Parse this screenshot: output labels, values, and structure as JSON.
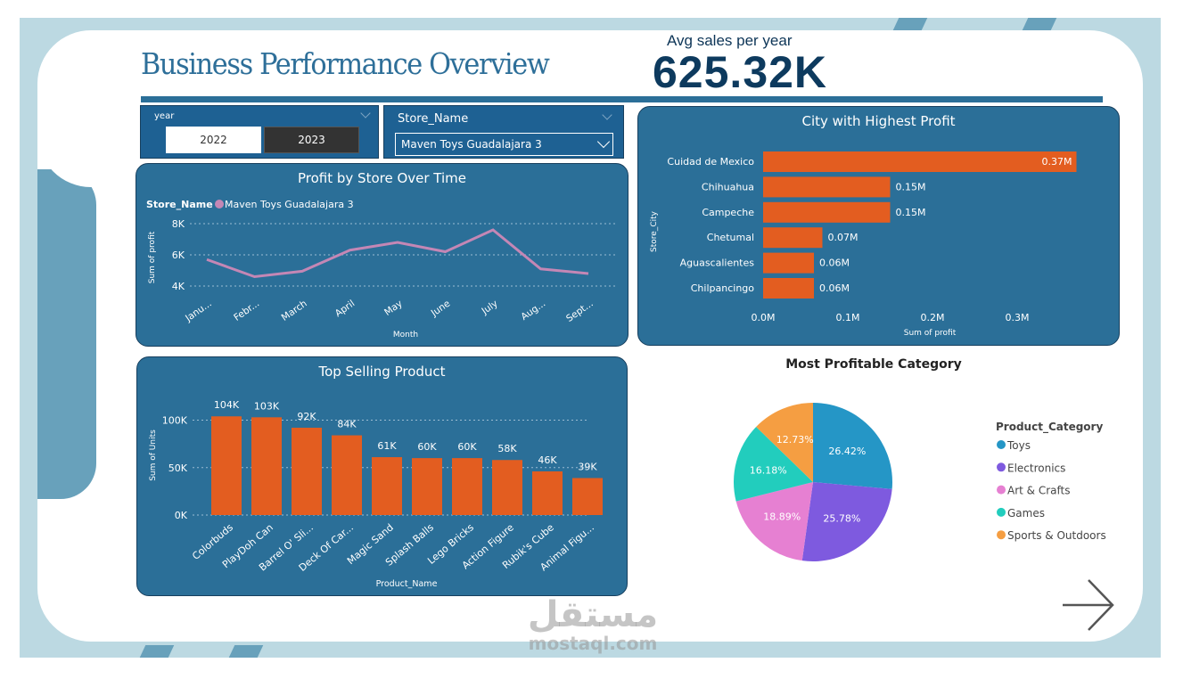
{
  "header": {
    "title": "Business Performance Overview",
    "kpi_label": "Avg sales per year",
    "kpi_value": "625.32K"
  },
  "year_slicer": {
    "label": "year",
    "options": [
      "2022",
      "2023"
    ],
    "selected": "2023"
  },
  "store_slicer": {
    "label": "Store_Name",
    "value": "Maven Toys Guadalajara 3"
  },
  "watermark": {
    "text": "مستقل",
    "sub": "mostaql.com"
  },
  "colors": {
    "panel": "#2b6f98",
    "bar": "#e35d20",
    "line": "#c487b5",
    "frame": "#bcd9e2"
  },
  "chart_data": [
    {
      "type": "line",
      "title": "Profit by Store Over Time",
      "legend_title": "Store_Name",
      "xlabel": "Month",
      "ylabel": "Sum of profit",
      "categories": [
        "Janu...",
        "Febr...",
        "March",
        "April",
        "May",
        "June",
        "July",
        "Aug...",
        "Sept..."
      ],
      "series": [
        {
          "name": "Maven Toys Guadalajara 3",
          "values": [
            5700,
            4600,
            4950,
            6300,
            6800,
            6200,
            7600,
            5100,
            4800
          ]
        }
      ],
      "yticks": [
        "4K",
        "6K",
        "8K"
      ],
      "ylim": [
        4000,
        8000
      ],
      "grid": true,
      "legend": "top-left"
    },
    {
      "type": "bar",
      "orientation": "horizontal",
      "title": "City with Highest Profit",
      "xlabel": "Sum of profit",
      "ylabel": "Store_City",
      "categories": [
        "Cuidad de Mexico",
        "Chihuahua",
        "Campeche",
        "Chetumal",
        "Aguascalientes",
        "Chilpancingo"
      ],
      "values": [
        0.37,
        0.15,
        0.15,
        0.07,
        0.06,
        0.06
      ],
      "labels": [
        "0.37M",
        "0.15M",
        "0.15M",
        "0.07M",
        "0.06M",
        "0.06M"
      ],
      "xticks": [
        "0.0M",
        "0.1M",
        "0.2M",
        "0.3M"
      ],
      "xlim": [
        0,
        0.37
      ]
    },
    {
      "type": "bar",
      "title": "Top Selling Product",
      "xlabel": "Product_Name",
      "ylabel": "Sum of Units",
      "categories": [
        "Colorbuds",
        "PlayDoh Can",
        "Barrel O' Sli...",
        "Deck Of Car...",
        "Magic Sand",
        "Splash Balls",
        "Lego Bricks",
        "Action Figure",
        "Rubik's Cube",
        "Animal Figu..."
      ],
      "values": [
        104,
        103,
        92,
        84,
        61,
        60,
        60,
        58,
        46,
        39
      ],
      "labels": [
        "104K",
        "103K",
        "92K",
        "84K",
        "61K",
        "60K",
        "60K",
        "58K",
        "46K",
        "39K"
      ],
      "yticks": [
        "0K",
        "50K",
        "100K"
      ],
      "ylim": [
        0,
        100
      ],
      "grid": true
    },
    {
      "type": "pie",
      "title": "Most Profitable Category",
      "legend_title": "Product_Category",
      "legend": "right",
      "slices": [
        {
          "name": "Toys",
          "value": 26.42,
          "label": "26.42%",
          "color": "#2596c6"
        },
        {
          "name": "Electronics",
          "value": 25.78,
          "label": "25.78%",
          "color": "#7e5adf"
        },
        {
          "name": "Art & Crafts",
          "value": 18.89,
          "label": "18.89%",
          "color": "#e680d2"
        },
        {
          "name": "Games",
          "value": 16.18,
          "label": "16.18%",
          "color": "#22cdbd"
        },
        {
          "name": "Sports & Outdoors",
          "value": 12.73,
          "label": "12.73%",
          "color": "#f59e42"
        }
      ]
    }
  ]
}
